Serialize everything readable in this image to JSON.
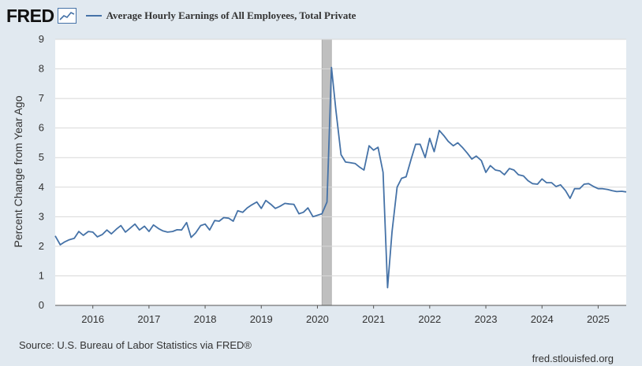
{
  "header": {
    "logo_text": "FRED",
    "logo_icon": "line-chart-icon",
    "series_title": "Average Hourly Earnings of All Employees, Total Private"
  },
  "footer": {
    "source": "Source: U.S. Bureau of Labor Statistics via FRED®",
    "site": "fred.stlouisfed.org"
  },
  "colors": {
    "background": "#e1e9f0",
    "plot_background": "#ffffff",
    "line": "#4572a7",
    "recession": "#bfbfbf",
    "grid": "#d8d8d8"
  },
  "chart_data": {
    "type": "line",
    "title": "Average Hourly Earnings of All Employees, Total Private",
    "xlabel": "",
    "ylabel": "Percent Change from Year Ago",
    "ylim": [
      0,
      9
    ],
    "yticks": [
      "0",
      "1",
      "2",
      "3",
      "4",
      "5",
      "6",
      "7",
      "8",
      "9"
    ],
    "xlim": [
      2015.33,
      2025.5
    ],
    "xticks": [
      "2016",
      "2017",
      "2018",
      "2019",
      "2020",
      "2021",
      "2022",
      "2023",
      "2024",
      "2025"
    ],
    "grid": true,
    "recession_shading": [
      [
        2020.08,
        2020.25
      ]
    ],
    "series": [
      {
        "name": "Average Hourly Earnings of All Employees, Total Private",
        "x": [
          2015.33,
          2015.42,
          2015.5,
          2015.58,
          2015.67,
          2015.75,
          2015.83,
          2015.92,
          2016.0,
          2016.08,
          2016.17,
          2016.25,
          2016.33,
          2016.42,
          2016.5,
          2016.58,
          2016.67,
          2016.75,
          2016.83,
          2016.92,
          2017.0,
          2017.08,
          2017.17,
          2017.25,
          2017.33,
          2017.42,
          2017.5,
          2017.58,
          2017.67,
          2017.75,
          2017.83,
          2017.92,
          2018.0,
          2018.08,
          2018.17,
          2018.25,
          2018.33,
          2018.42,
          2018.5,
          2018.58,
          2018.67,
          2018.75,
          2018.83,
          2018.92,
          2019.0,
          2019.08,
          2019.17,
          2019.25,
          2019.33,
          2019.42,
          2019.5,
          2019.58,
          2019.67,
          2019.75,
          2019.83,
          2019.92,
          2020.0,
          2020.08,
          2020.17,
          2020.25,
          2020.33,
          2020.42,
          2020.5,
          2020.58,
          2020.67,
          2020.75,
          2020.83,
          2020.92,
          2021.0,
          2021.08,
          2021.17,
          2021.25,
          2021.33,
          2021.42,
          2021.5,
          2021.58,
          2021.67,
          2021.75,
          2021.83,
          2021.92,
          2022.0,
          2022.08,
          2022.17,
          2022.25,
          2022.33,
          2022.42,
          2022.5,
          2022.58,
          2022.67,
          2022.75,
          2022.83,
          2022.92,
          2023.0,
          2023.08,
          2023.17,
          2023.25,
          2023.33,
          2023.42,
          2023.5,
          2023.58,
          2023.67,
          2023.75,
          2023.83,
          2023.92,
          2024.0,
          2024.08,
          2024.17,
          2024.25,
          2024.33,
          2024.42,
          2024.5,
          2024.58,
          2024.67,
          2024.75,
          2024.83,
          2024.92,
          2025.0,
          2025.08,
          2025.17,
          2025.25,
          2025.33,
          2025.42,
          2025.5
        ],
        "y": [
          2.35,
          2.05,
          2.15,
          2.22,
          2.27,
          2.5,
          2.37,
          2.5,
          2.48,
          2.32,
          2.4,
          2.55,
          2.42,
          2.58,
          2.7,
          2.48,
          2.62,
          2.75,
          2.55,
          2.68,
          2.5,
          2.72,
          2.6,
          2.52,
          2.48,
          2.5,
          2.56,
          2.55,
          2.8,
          2.3,
          2.45,
          2.7,
          2.75,
          2.55,
          2.87,
          2.85,
          2.97,
          2.95,
          2.85,
          3.2,
          3.15,
          3.3,
          3.4,
          3.5,
          3.28,
          3.55,
          3.42,
          3.28,
          3.35,
          3.45,
          3.43,
          3.42,
          3.1,
          3.15,
          3.3,
          3.0,
          3.05,
          3.1,
          3.5,
          8.05,
          6.6,
          5.1,
          4.85,
          4.83,
          4.8,
          4.68,
          4.58,
          5.4,
          5.25,
          5.35,
          4.5,
          0.6,
          2.5,
          4.0,
          4.3,
          4.35,
          4.95,
          5.45,
          5.45,
          5.0,
          5.65,
          5.2,
          5.92,
          5.75,
          5.55,
          5.4,
          5.5,
          5.35,
          5.15,
          4.95,
          5.05,
          4.9,
          4.5,
          4.73,
          4.58,
          4.55,
          4.42,
          4.63,
          4.58,
          4.42,
          4.38,
          4.22,
          4.12,
          4.1,
          4.28,
          4.15,
          4.15,
          4.02,
          4.08,
          3.88,
          3.62,
          3.95,
          3.95,
          4.1,
          4.12,
          4.02,
          3.95,
          3.95,
          3.92,
          3.88,
          3.85,
          3.86,
          3.84
        ]
      }
    ]
  }
}
